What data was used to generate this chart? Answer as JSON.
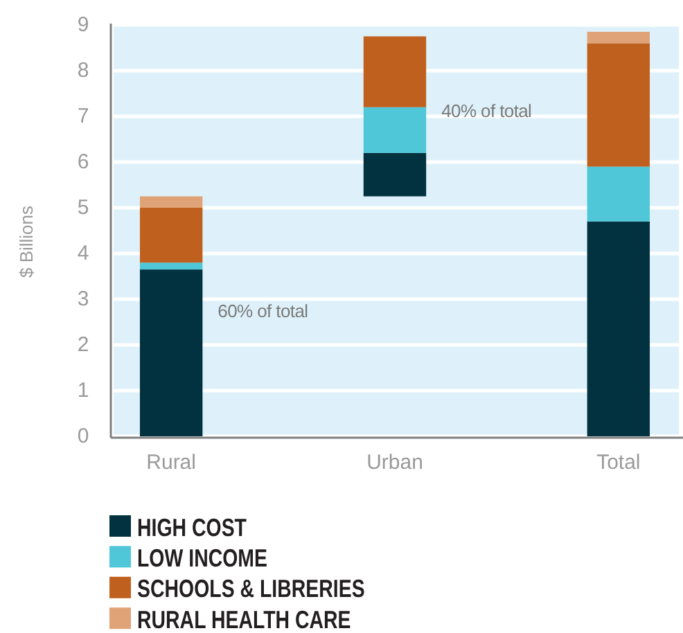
{
  "chart_data": {
    "type": "bar",
    "stacked": true,
    "ylabel": "$ Billions",
    "categories": [
      "Rural",
      "Urban",
      "Total"
    ],
    "series": [
      {
        "name": "HIGH COST",
        "color": "#02323f",
        "base": [
          0,
          5.25,
          0
        ],
        "values": [
          3.65,
          0.95,
          4.7
        ]
      },
      {
        "name": "LOW INCOME",
        "color": "#4fc7d8",
        "values": [
          0.15,
          1.0,
          1.2
        ]
      },
      {
        "name": "SCHOOLS & LIBRERIES",
        "color": "#c0601e",
        "values": [
          1.2,
          1.55,
          2.7
        ]
      },
      {
        "name": "RURAL HEALTH CARE",
        "color": "#e0a377",
        "values": [
          0.25,
          null,
          0.25
        ]
      }
    ],
    "ylim": [
      0,
      9
    ],
    "yticks": [
      0,
      1,
      2,
      3,
      4,
      5,
      6,
      7,
      8,
      9
    ],
    "grid": "y",
    "legend": "bottom",
    "annotations": [
      "60% of total",
      "40% of total"
    ]
  }
}
